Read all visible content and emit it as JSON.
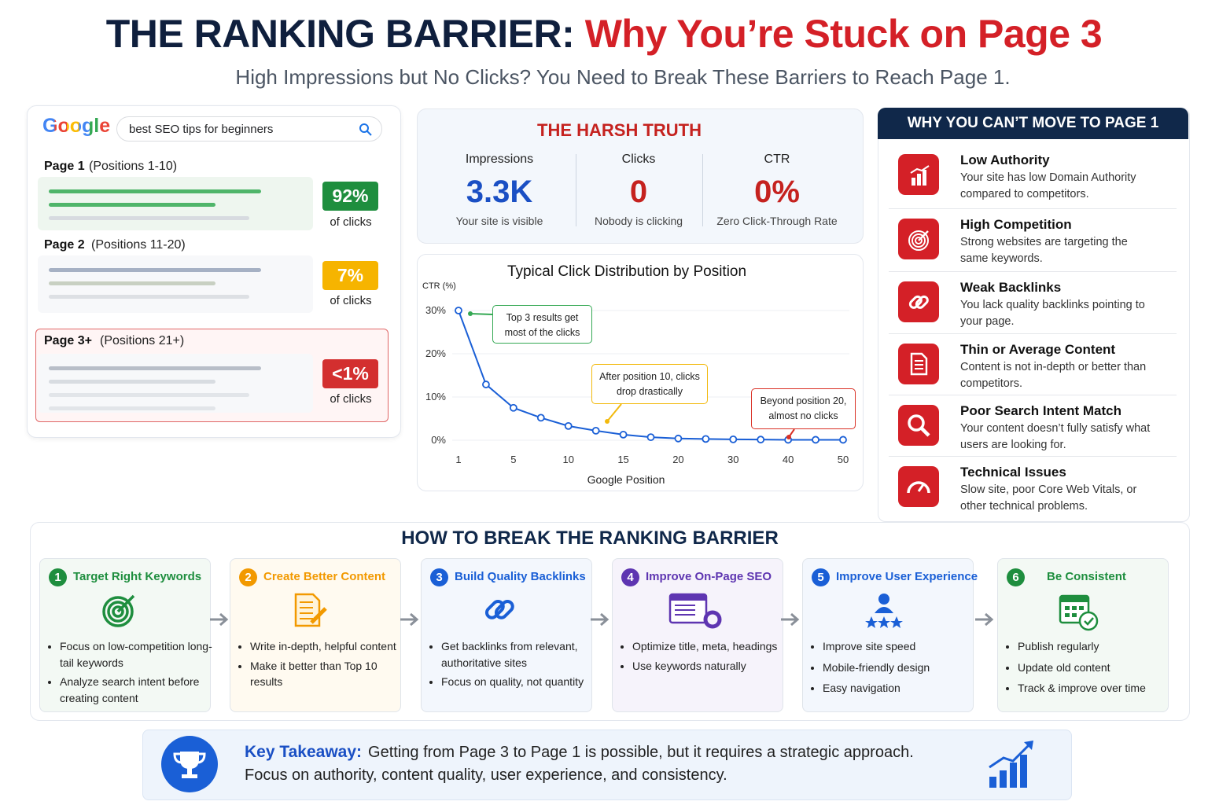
{
  "header": {
    "title_lead": "THE RANKING BARRIER:",
    "title_highlight": "Why You’re Stuck on Page 3",
    "subtitle": "High Impressions but No Clicks? You Need to Break These Barriers to Reach Page 1."
  },
  "serp": {
    "logo": "Google",
    "query": "best SEO tips for beginners",
    "pages": [
      {
        "label": "Page 1",
        "range": "(Positions 1-10)",
        "share": "92%",
        "share_note": "of clicks"
      },
      {
        "label": "Page 2",
        "range": "(Positions 11-20)",
        "share": "7%",
        "share_note": "of clicks"
      },
      {
        "label": "Page 3+",
        "range": "(Positions 21+)",
        "share": "<1%",
        "share_note": "of clicks"
      }
    ]
  },
  "truth": {
    "title": "THE HARSH TRUTH",
    "stats": [
      {
        "label": "Impressions",
        "value": "3.3K",
        "note": "Your site is visible"
      },
      {
        "label": "Clicks",
        "value": "0",
        "note": "Nobody is clicking"
      },
      {
        "label": "CTR",
        "value": "0%",
        "note": "Zero Click-Through Rate"
      }
    ]
  },
  "chart_data": {
    "type": "line",
    "title": "Typical Click Distribution by Position",
    "y_label": "CTR (%)",
    "x_label": "Google Position",
    "categories": [
      1,
      null,
      5,
      null,
      10,
      null,
      15,
      null,
      20,
      null,
      30,
      null,
      40,
      null,
      50
    ],
    "series": [
      {
        "name": "CTR",
        "color": "#1a5fd6",
        "values": [
          30,
          12.9,
          7.5,
          5.2,
          3.3,
          2.2,
          1.3,
          0.7,
          0.4,
          0.3,
          0.2,
          0.15,
          0.1,
          0.1,
          0.1
        ]
      }
    ],
    "ylim": [
      0,
      30
    ],
    "yticks": [
      {
        "value": 0,
        "label": "0%"
      },
      {
        "value": 10,
        "label": "10%"
      },
      {
        "value": 20,
        "label": "20%"
      },
      {
        "value": 30,
        "label": "30%"
      }
    ],
    "grid": true,
    "annotations": [
      {
        "text": "Top 3 results get most of the clicks",
        "color": "#34a853"
      },
      {
        "text": "After position 10, clicks drop drastically",
        "color": "#f2b90c"
      },
      {
        "text": "Beyond position 20, almost no clicks",
        "color": "#d93025"
      }
    ]
  },
  "reasons": {
    "title": "WHY YOU CAN’T MOVE TO PAGE 1",
    "items": [
      {
        "title": "Low Authority",
        "text": "Your site has low Domain Authority compared to competitors."
      },
      {
        "title": "High Competition",
        "text": "Strong websites are targeting the same keywords."
      },
      {
        "title": "Weak Backlinks",
        "text": "You lack quality backlinks pointing to your page."
      },
      {
        "title": "Thin or Average Content",
        "text": "Content is not in-depth or better than competitors."
      },
      {
        "title": "Poor Search Intent Match",
        "text": "Your content doesn’t fully satisfy what users are looking for."
      },
      {
        "title": "Technical Issues",
        "text": "Slow site, poor Core Web Vitals, or other technical problems."
      }
    ]
  },
  "steps": {
    "title": "HOW TO BREAK THE RANKING BARRIER",
    "items": [
      {
        "number": "1",
        "title": "Target Right Keywords",
        "points": [
          "Focus on low-competition long-tail keywords",
          "Analyze search intent before creating content"
        ]
      },
      {
        "number": "2",
        "title": "Create Better Content",
        "points": [
          "Write in-depth, helpful content",
          "Make it better than Top 10 results"
        ]
      },
      {
        "number": "3",
        "title": "Build Quality Backlinks",
        "points": [
          "Get backlinks from relevant, authoritative sites",
          "Focus on quality, not quantity"
        ]
      },
      {
        "number": "4",
        "title": "Improve On-Page SEO",
        "points": [
          "Optimize title, meta, headings",
          "Use keywords naturally"
        ]
      },
      {
        "number": "5",
        "title": "Improve User Experience",
        "points": [
          "Improve site speed",
          "Mobile-friendly design",
          "Easy navigation"
        ]
      },
      {
        "number": "6",
        "title": "Be Consistent",
        "points": [
          "Publish regularly",
          "Update old content",
          "Track & improve over time"
        ]
      }
    ]
  },
  "takeaway": {
    "label": "Key Takeaway:",
    "lines": [
      "Getting from Page 3 to Page 1 is possible, but it requires a strategic approach.",
      "Focus on authority, content quality, user experience, and consistency."
    ]
  }
}
